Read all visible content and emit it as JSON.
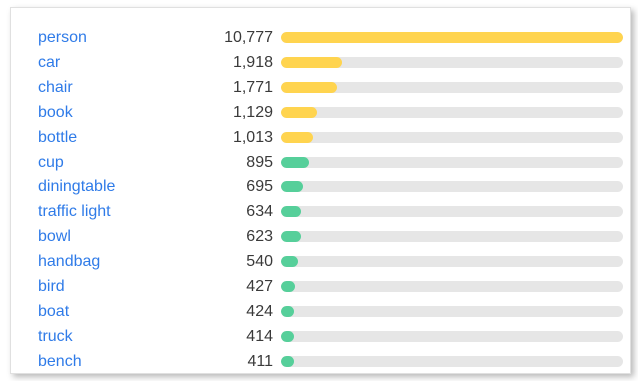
{
  "colors": {
    "link": "#2f7be8",
    "count_text": "#3a3a3a",
    "track": "#e6e6e6",
    "bar_top": "#ffd44f",
    "bar_rest": "#56cf9a"
  },
  "rows": [
    {
      "label": "person",
      "count": "10,777",
      "value": 10777,
      "color": "#ffd44f"
    },
    {
      "label": "car",
      "count": "1,918",
      "value": 1918,
      "color": "#ffd44f"
    },
    {
      "label": "chair",
      "count": "1,771",
      "value": 1771,
      "color": "#ffd44f"
    },
    {
      "label": "book",
      "count": "1,129",
      "value": 1129,
      "color": "#ffd44f"
    },
    {
      "label": "bottle",
      "count": "1,013",
      "value": 1013,
      "color": "#ffd44f"
    },
    {
      "label": "cup",
      "count": "895",
      "value": 895,
      "color": "#56cf9a"
    },
    {
      "label": "diningtable",
      "count": "695",
      "value": 695,
      "color": "#56cf9a"
    },
    {
      "label": "traffic light",
      "count": "634",
      "value": 634,
      "color": "#56cf9a"
    },
    {
      "label": "bowl",
      "count": "623",
      "value": 623,
      "color": "#56cf9a"
    },
    {
      "label": "handbag",
      "count": "540",
      "value": 540,
      "color": "#56cf9a"
    },
    {
      "label": "bird",
      "count": "427",
      "value": 427,
      "color": "#56cf9a"
    },
    {
      "label": "boat",
      "count": "424",
      "value": 424,
      "color": "#56cf9a"
    },
    {
      "label": "truck",
      "count": "414",
      "value": 414,
      "color": "#56cf9a"
    },
    {
      "label": "bench",
      "count": "411",
      "value": 411,
      "color": "#56cf9a"
    }
  ]
}
